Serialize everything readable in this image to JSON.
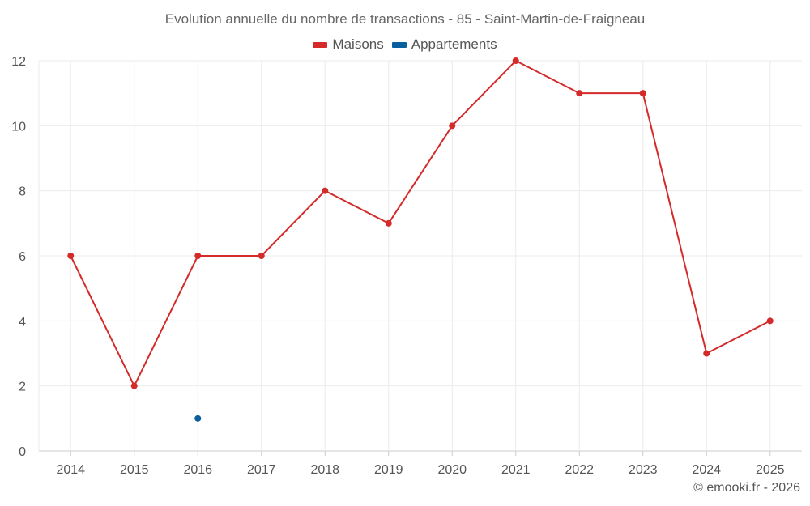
{
  "chart_data": {
    "type": "line",
    "title": "Evolution annuelle du nombre de transactions - 85 - Saint-Martin-de-Fraigneau",
    "categories": [
      "2014",
      "2015",
      "2016",
      "2017",
      "2018",
      "2019",
      "2020",
      "2021",
      "2022",
      "2023",
      "2024",
      "2025"
    ],
    "series": [
      {
        "name": "Maisons",
        "color": "#d42a2a",
        "values": [
          6,
          2,
          6,
          6,
          8,
          7,
          10,
          12,
          11,
          11,
          3,
          4
        ]
      },
      {
        "name": "Appartements",
        "color": "#0a5f9e",
        "values": [
          null,
          null,
          1,
          null,
          null,
          null,
          null,
          null,
          null,
          null,
          null,
          null
        ]
      }
    ],
    "ylim": [
      0,
      12
    ],
    "yticks": [
      0,
      2,
      4,
      6,
      8,
      10,
      12
    ],
    "grid": true,
    "legend_position": "top-center",
    "xlabel": "",
    "ylabel": ""
  },
  "credit": "© emooki.fr - 2026"
}
